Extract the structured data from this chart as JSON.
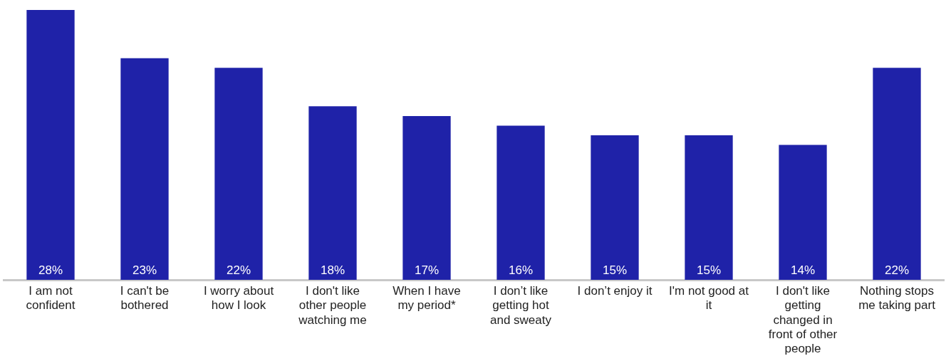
{
  "chart_data": {
    "type": "bar",
    "categories": [
      "I am not confident",
      "I can't be bothered",
      "I worry about how I look",
      "I don't like other people watching me",
      "When I have my period*",
      "I don’t like getting hot and sweaty",
      "I don’t enjoy it",
      "I'm not good at it",
      "I don't like getting changed in front of other people",
      "Nothing stops me taking part"
    ],
    "values": [
      28,
      23,
      22,
      18,
      17,
      16,
      15,
      15,
      14,
      22
    ],
    "value_labels": [
      "28%",
      "23%",
      "22%",
      "18%",
      "17%",
      "16%",
      "15%",
      "15%",
      "14%",
      "22%"
    ],
    "color": "#1f22a8",
    "grid": false,
    "legend": false
  }
}
